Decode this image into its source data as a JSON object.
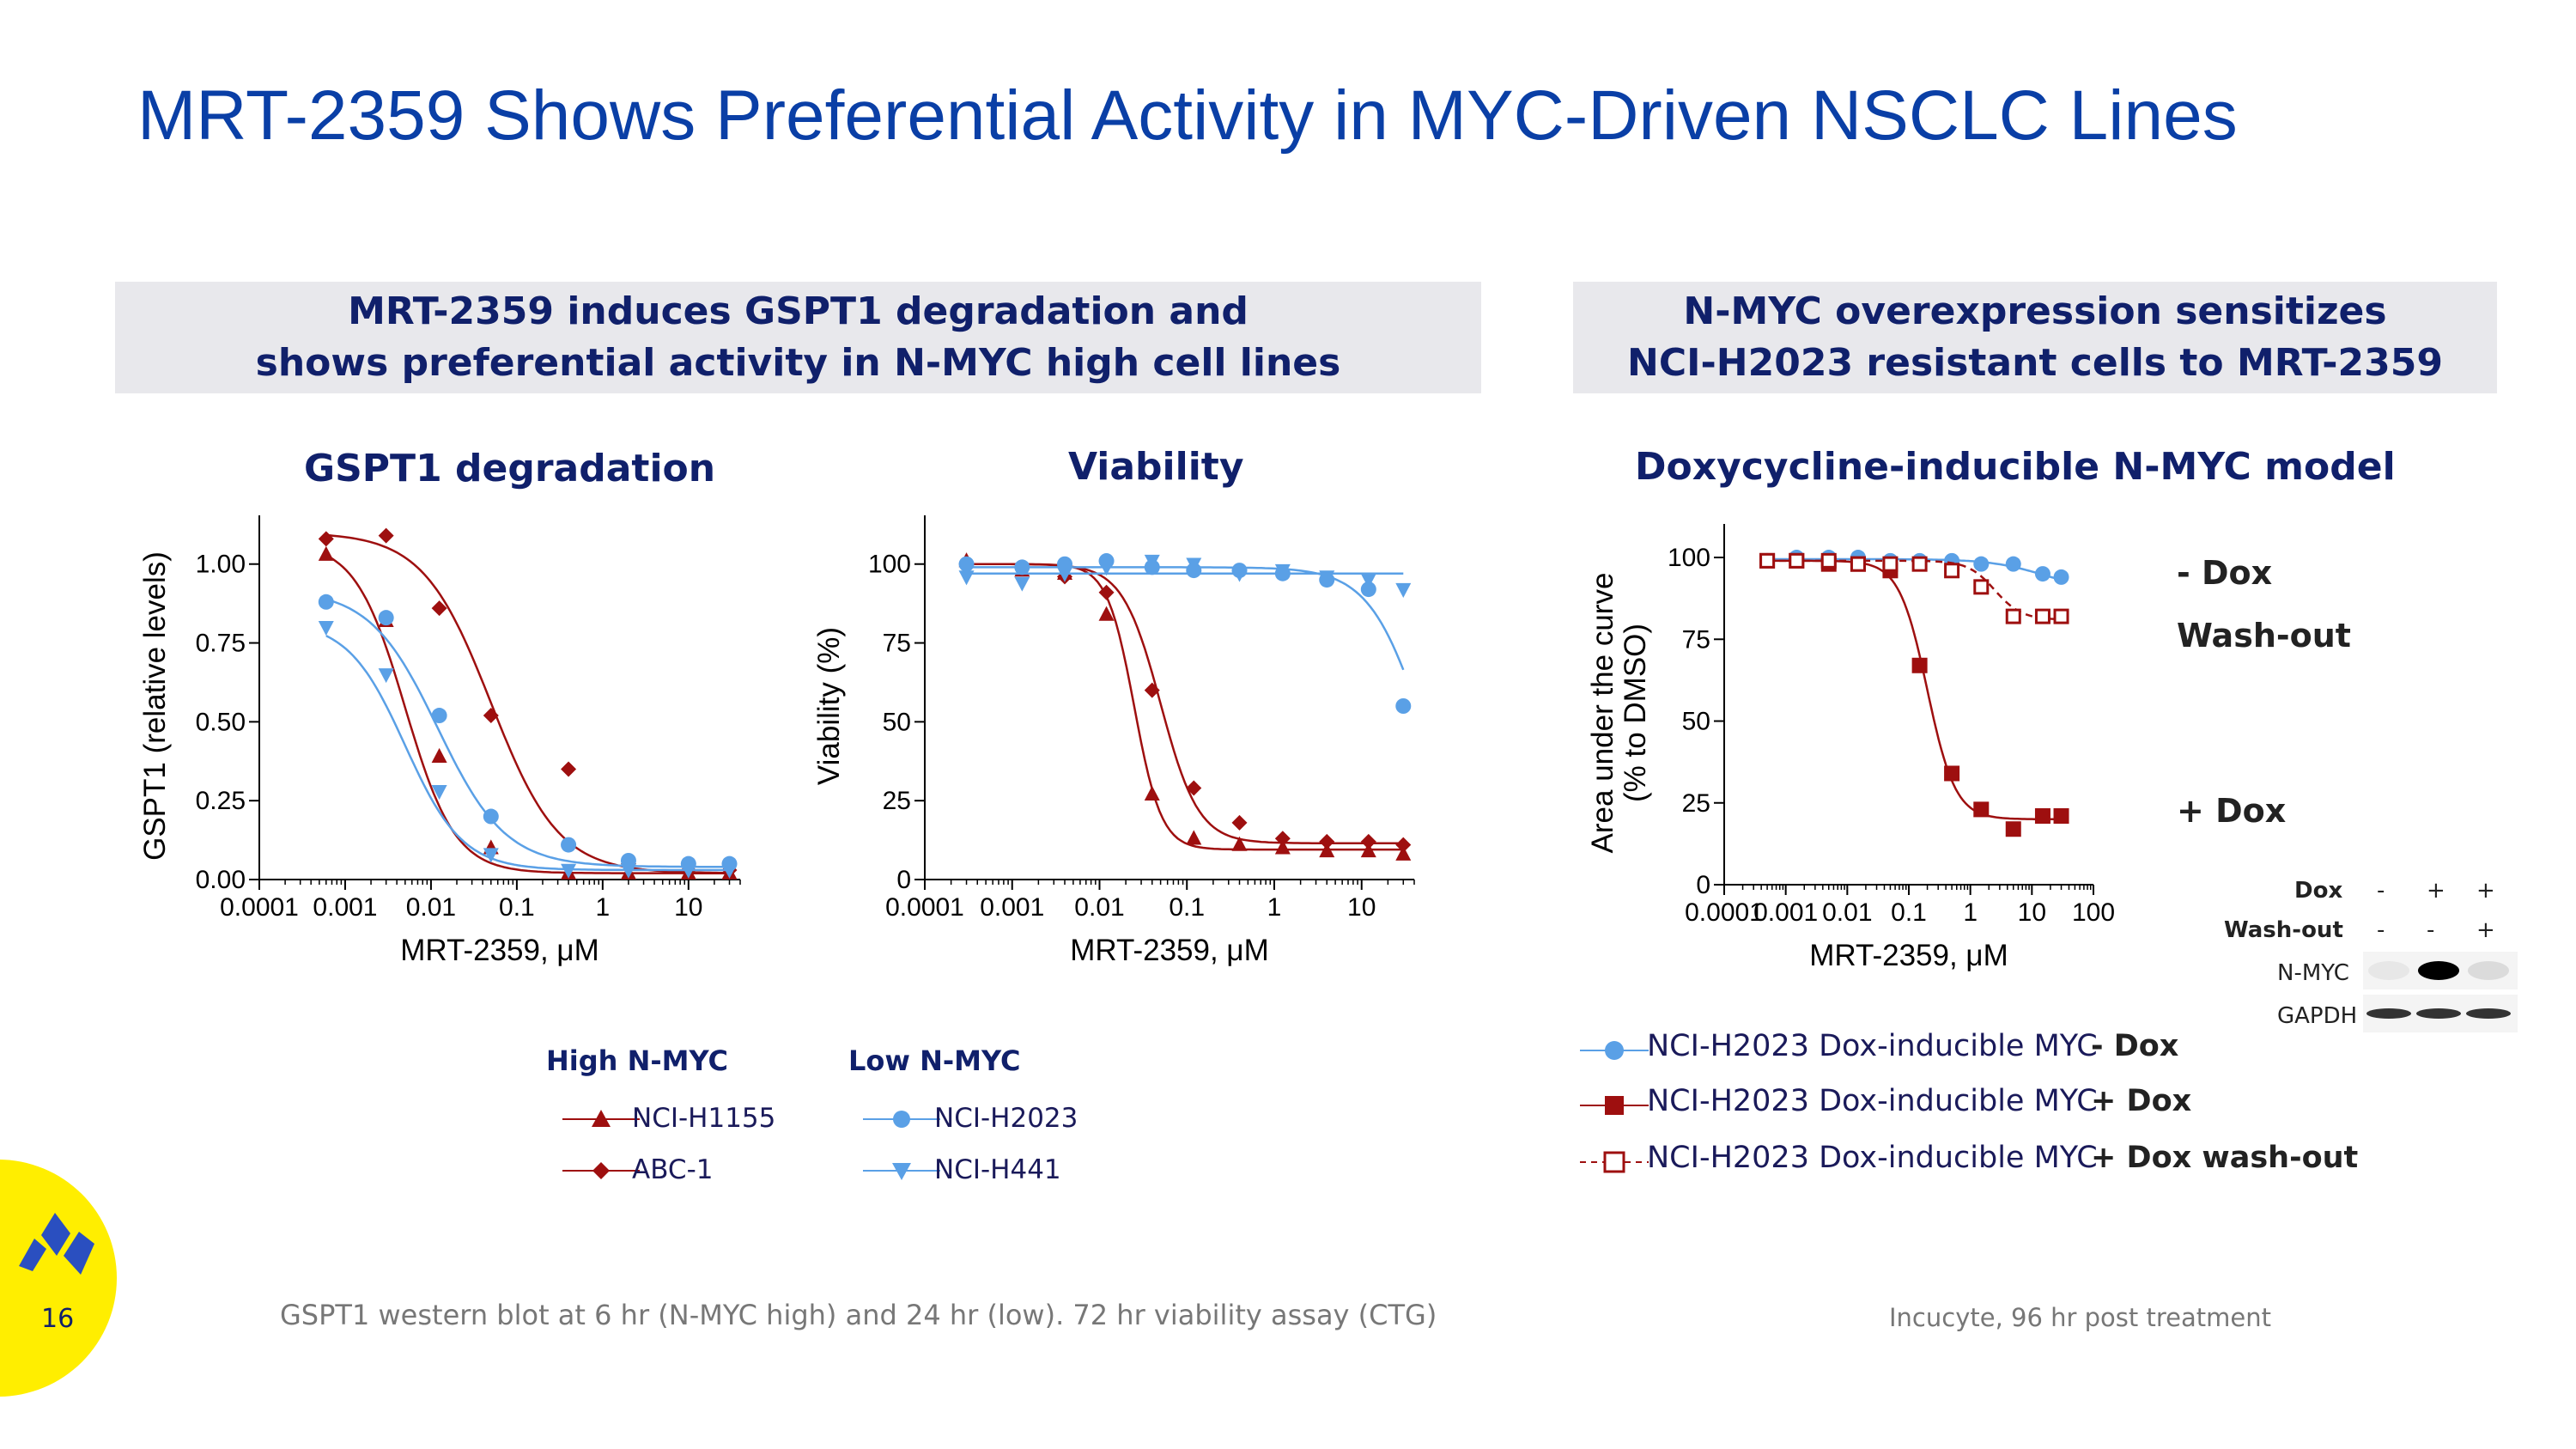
{
  "slide": {
    "title": "MRT-2359 Shows Preferential Activity in MYC-Driven NSCLC Lines",
    "page_number": "16",
    "footnote_left": "GSPT1 western blot at 6 hr (N-MYC high) and 24 hr (low). 72 hr viability assay (CTG)",
    "footnote_right": "Incucyte, 96 hr post treatment",
    "colors": {
      "title": "#0a3fa6",
      "navy": "#10206b",
      "dark_red": "#9e0f0f",
      "blue": "#5aa0e6",
      "logo_yellow": "#ffee00",
      "logo_blue": "#2a4fc0"
    }
  },
  "banners": {
    "left": {
      "line1": "MRT-2359 induces GSPT1 degradation and",
      "line2": "shows preferential  activity in N-MYC high cell lines"
    },
    "right": {
      "line1": "N-MYC overexpression sensitizes",
      "line2": "NCI-H2023 resistant cells to MRT-2359"
    }
  },
  "panels": {
    "gspt1": {
      "title": "GSPT1 degradation"
    },
    "viability": {
      "title": "Viability"
    },
    "dox": {
      "title": "Doxycycline-inducible N-MYC model"
    }
  },
  "legend_left": {
    "high_header": "High N-MYC",
    "low_header": "Low N-MYC",
    "items": [
      {
        "label": "NCI-H1155",
        "marker": "triangle-up-icon",
        "color": "#9e0f0f"
      },
      {
        "label": "ABC-1",
        "marker": "diamond-icon",
        "color": "#9e0f0f"
      },
      {
        "label": "NCI-H2023",
        "marker": "circle-icon",
        "color": "#5aa0e6"
      },
      {
        "label": "NCI-H441",
        "marker": "triangle-down-icon",
        "color": "#5aa0e6"
      }
    ]
  },
  "legend_right": {
    "items": [
      {
        "label": "NCI-H2023 Dox-inducible MYC",
        "tag": "- Dox",
        "marker": "circle-icon"
      },
      {
        "label": "NCI-H2023 Dox-inducible MYC",
        "tag": "+ Dox",
        "marker": "filled-square-icon"
      },
      {
        "label": "NCI-H2023 Dox-inducible MYC",
        "tag": "+ Dox wash-out",
        "marker": "open-square-icon"
      }
    ]
  },
  "annotations": {
    "minus_dox": "- Dox",
    "wash_out": "Wash-out",
    "plus_dox": "+ Dox"
  },
  "western_blot": {
    "rows": [
      {
        "label": "Dox",
        "values": [
          "-",
          "+",
          "+"
        ]
      },
      {
        "label": "Wash-out",
        "values": [
          "-",
          "-",
          "+"
        ]
      }
    ],
    "bands": [
      "N-MYC",
      "GAPDH"
    ],
    "nmyc_intensity": [
      0.05,
      1.0,
      0.1
    ],
    "gapdh_intensity": [
      0.85,
      0.85,
      0.85
    ]
  },
  "chart_data": [
    {
      "type": "scatter",
      "title": "GSPT1 degradation",
      "xlabel": "MRT-2359, μM",
      "ylabel": "GSPT1 (relative levels)",
      "xscale": "log",
      "xlim": [
        0.0001,
        40
      ],
      "ylim": [
        0,
        1.1
      ],
      "xticks": [
        "0.0001",
        "0.001",
        "0.01",
        "0.1",
        "1",
        "10"
      ],
      "yticks": [
        "0.00",
        "0.25",
        "0.50",
        "0.75",
        "1.00"
      ],
      "series": [
        {
          "name": "NCI-H1155",
          "marker": "triangle-up",
          "color": "#9e0f0f",
          "x": [
            0.0006,
            0.003,
            0.0125,
            0.05,
            0.4,
            2,
            10,
            30
          ],
          "y": [
            1.03,
            0.82,
            0.39,
            0.1,
            0.02,
            0.02,
            0.02,
            0.02
          ],
          "fit": {
            "top": 1.07,
            "bottom": 0.02,
            "ec50": 0.005,
            "hill": 1.5
          }
        },
        {
          "name": "ABC-1",
          "marker": "diamond",
          "color": "#9e0f0f",
          "x": [
            0.0006,
            0.003,
            0.0125,
            0.05,
            0.4,
            2,
            10,
            30
          ],
          "y": [
            1.08,
            1.09,
            0.86,
            0.52,
            0.35,
            0.05,
            0.03,
            0.03
          ],
          "fit": {
            "top": 1.1,
            "bottom": 0.02,
            "ec50": 0.05,
            "hill": 1.1
          }
        },
        {
          "name": "NCI-H2023",
          "marker": "circle",
          "color": "#5aa0e6",
          "x": [
            0.0006,
            0.003,
            0.0125,
            0.05,
            0.4,
            2,
            10,
            30
          ],
          "y": [
            0.88,
            0.83,
            0.52,
            0.2,
            0.11,
            0.06,
            0.05,
            0.05
          ],
          "fit": {
            "top": 0.92,
            "bottom": 0.04,
            "ec50": 0.012,
            "hill": 1.1
          }
        },
        {
          "name": "NCI-H441",
          "marker": "triangle-down",
          "color": "#5aa0e6",
          "x": [
            0.0006,
            0.003,
            0.0125,
            0.05,
            0.4,
            2,
            10,
            30
          ],
          "y": [
            0.8,
            0.65,
            0.28,
            0.08,
            0.03,
            0.03,
            0.03,
            0.03
          ],
          "fit": {
            "top": 0.82,
            "bottom": 0.03,
            "ec50": 0.005,
            "hill": 1.3
          }
        }
      ]
    },
    {
      "type": "scatter",
      "title": "Viability",
      "xlabel": "MRT-2359, μM",
      "ylabel": "Viability (%)",
      "xscale": "log",
      "xlim": [
        0.0001,
        40
      ],
      "ylim": [
        0,
        110
      ],
      "xticks": [
        "0.0001",
        "0.001",
        "0.01",
        "0.1",
        "1",
        "10"
      ],
      "yticks": [
        "0",
        "25",
        "50",
        "75",
        "100"
      ],
      "series": [
        {
          "name": "NCI-H1155",
          "marker": "triangle-up",
          "color": "#9e0f0f",
          "x": [
            0.0003,
            0.0013,
            0.004,
            0.012,
            0.04,
            0.12,
            0.4,
            1.25,
            4,
            12,
            30
          ],
          "y": [
            101,
            98,
            97,
            84,
            27,
            13,
            11,
            10,
            9,
            9,
            8
          ],
          "fit": {
            "top": 100,
            "bottom": 9.5,
            "ec50": 0.025,
            "hill": 2.8
          }
        },
        {
          "name": "ABC-1",
          "marker": "diamond",
          "color": "#9e0f0f",
          "x": [
            0.0003,
            0.0013,
            0.004,
            0.012,
            0.04,
            0.12,
            0.4,
            1.25,
            4,
            12,
            30
          ],
          "y": [
            100,
            99,
            96,
            91,
            60,
            29,
            18,
            13,
            12,
            12,
            11
          ],
          "fit": {
            "top": 100,
            "bottom": 11.5,
            "ec50": 0.05,
            "hill": 2.0
          }
        },
        {
          "name": "NCI-H2023",
          "marker": "circle",
          "color": "#5aa0e6",
          "x": [
            0.0003,
            0.0013,
            0.004,
            0.012,
            0.04,
            0.12,
            0.4,
            1.25,
            4,
            12,
            30
          ],
          "y": [
            100,
            99,
            100,
            101,
            99,
            98,
            98,
            97,
            95,
            92,
            55
          ],
          "fit": {
            "top": 99,
            "bottom": 0,
            "ec50": 50,
            "hill": 1.4
          }
        },
        {
          "name": "NCI-H441",
          "marker": "triangle-down",
          "color": "#5aa0e6",
          "x": [
            0.0003,
            0.0013,
            0.004,
            0.012,
            0.04,
            0.12,
            0.4,
            1.25,
            4,
            12,
            30
          ],
          "y": [
            96,
            94,
            97,
            99,
            101,
            100,
            97,
            98,
            96,
            95,
            92
          ],
          "fit": {
            "top": 97,
            "bottom": 97,
            "ec50": 1,
            "hill": 1
          }
        }
      ]
    },
    {
      "type": "scatter",
      "title": "Doxycycline-inducible N-MYC model",
      "xlabel": "MRT-2359, μM",
      "ylabel_line1": "Area under the curve",
      "ylabel_line2": "(% to DMSO)",
      "xscale": "log",
      "xlim": [
        0.0001,
        100
      ],
      "ylim": [
        0,
        105
      ],
      "xticks": [
        "0.0001",
        "0.001",
        "0.01",
        "0.1",
        "1",
        "10",
        "100"
      ],
      "yticks": [
        "0",
        "25",
        "50",
        "75",
        "100"
      ],
      "series": [
        {
          "name": "NCI-H2023 Dox-inducible MYC - Dox",
          "marker": "circle",
          "color": "#5aa0e6",
          "x": [
            0.0005,
            0.0015,
            0.005,
            0.015,
            0.05,
            0.15,
            0.5,
            1.5,
            5,
            15,
            30
          ],
          "y": [
            99,
            100,
            100,
            100,
            99,
            99,
            99,
            98,
            98,
            95,
            94
          ],
          "fit": {
            "top": 99.5,
            "bottom": 90,
            "ec50": 15,
            "hill": 1
          }
        },
        {
          "name": "NCI-H2023 Dox-inducible MYC + Dox",
          "marker": "filled-square",
          "color": "#9e0f0f",
          "x": [
            0.0005,
            0.0015,
            0.005,
            0.015,
            0.05,
            0.15,
            0.5,
            1.5,
            5,
            15,
            30
          ],
          "y": [
            99,
            99,
            98,
            98,
            96,
            67,
            34,
            23,
            17,
            21,
            21
          ],
          "fit": {
            "top": 99,
            "bottom": 20,
            "ec50": 0.2,
            "hill": 1.9
          }
        },
        {
          "name": "NCI-H2023 Dox-inducible MYC + Dox wash-out",
          "marker": "open-square",
          "color": "#9e0f0f",
          "x": [
            0.0005,
            0.0015,
            0.005,
            0.015,
            0.05,
            0.15,
            0.5,
            1.5,
            5,
            15,
            30
          ],
          "y": [
            99,
            99,
            99,
            98,
            98,
            98,
            96,
            91,
            82,
            82,
            82
          ],
          "fit": {
            "top": 99,
            "bottom": 81,
            "ec50": 2.5,
            "hill": 2
          }
        }
      ]
    }
  ]
}
